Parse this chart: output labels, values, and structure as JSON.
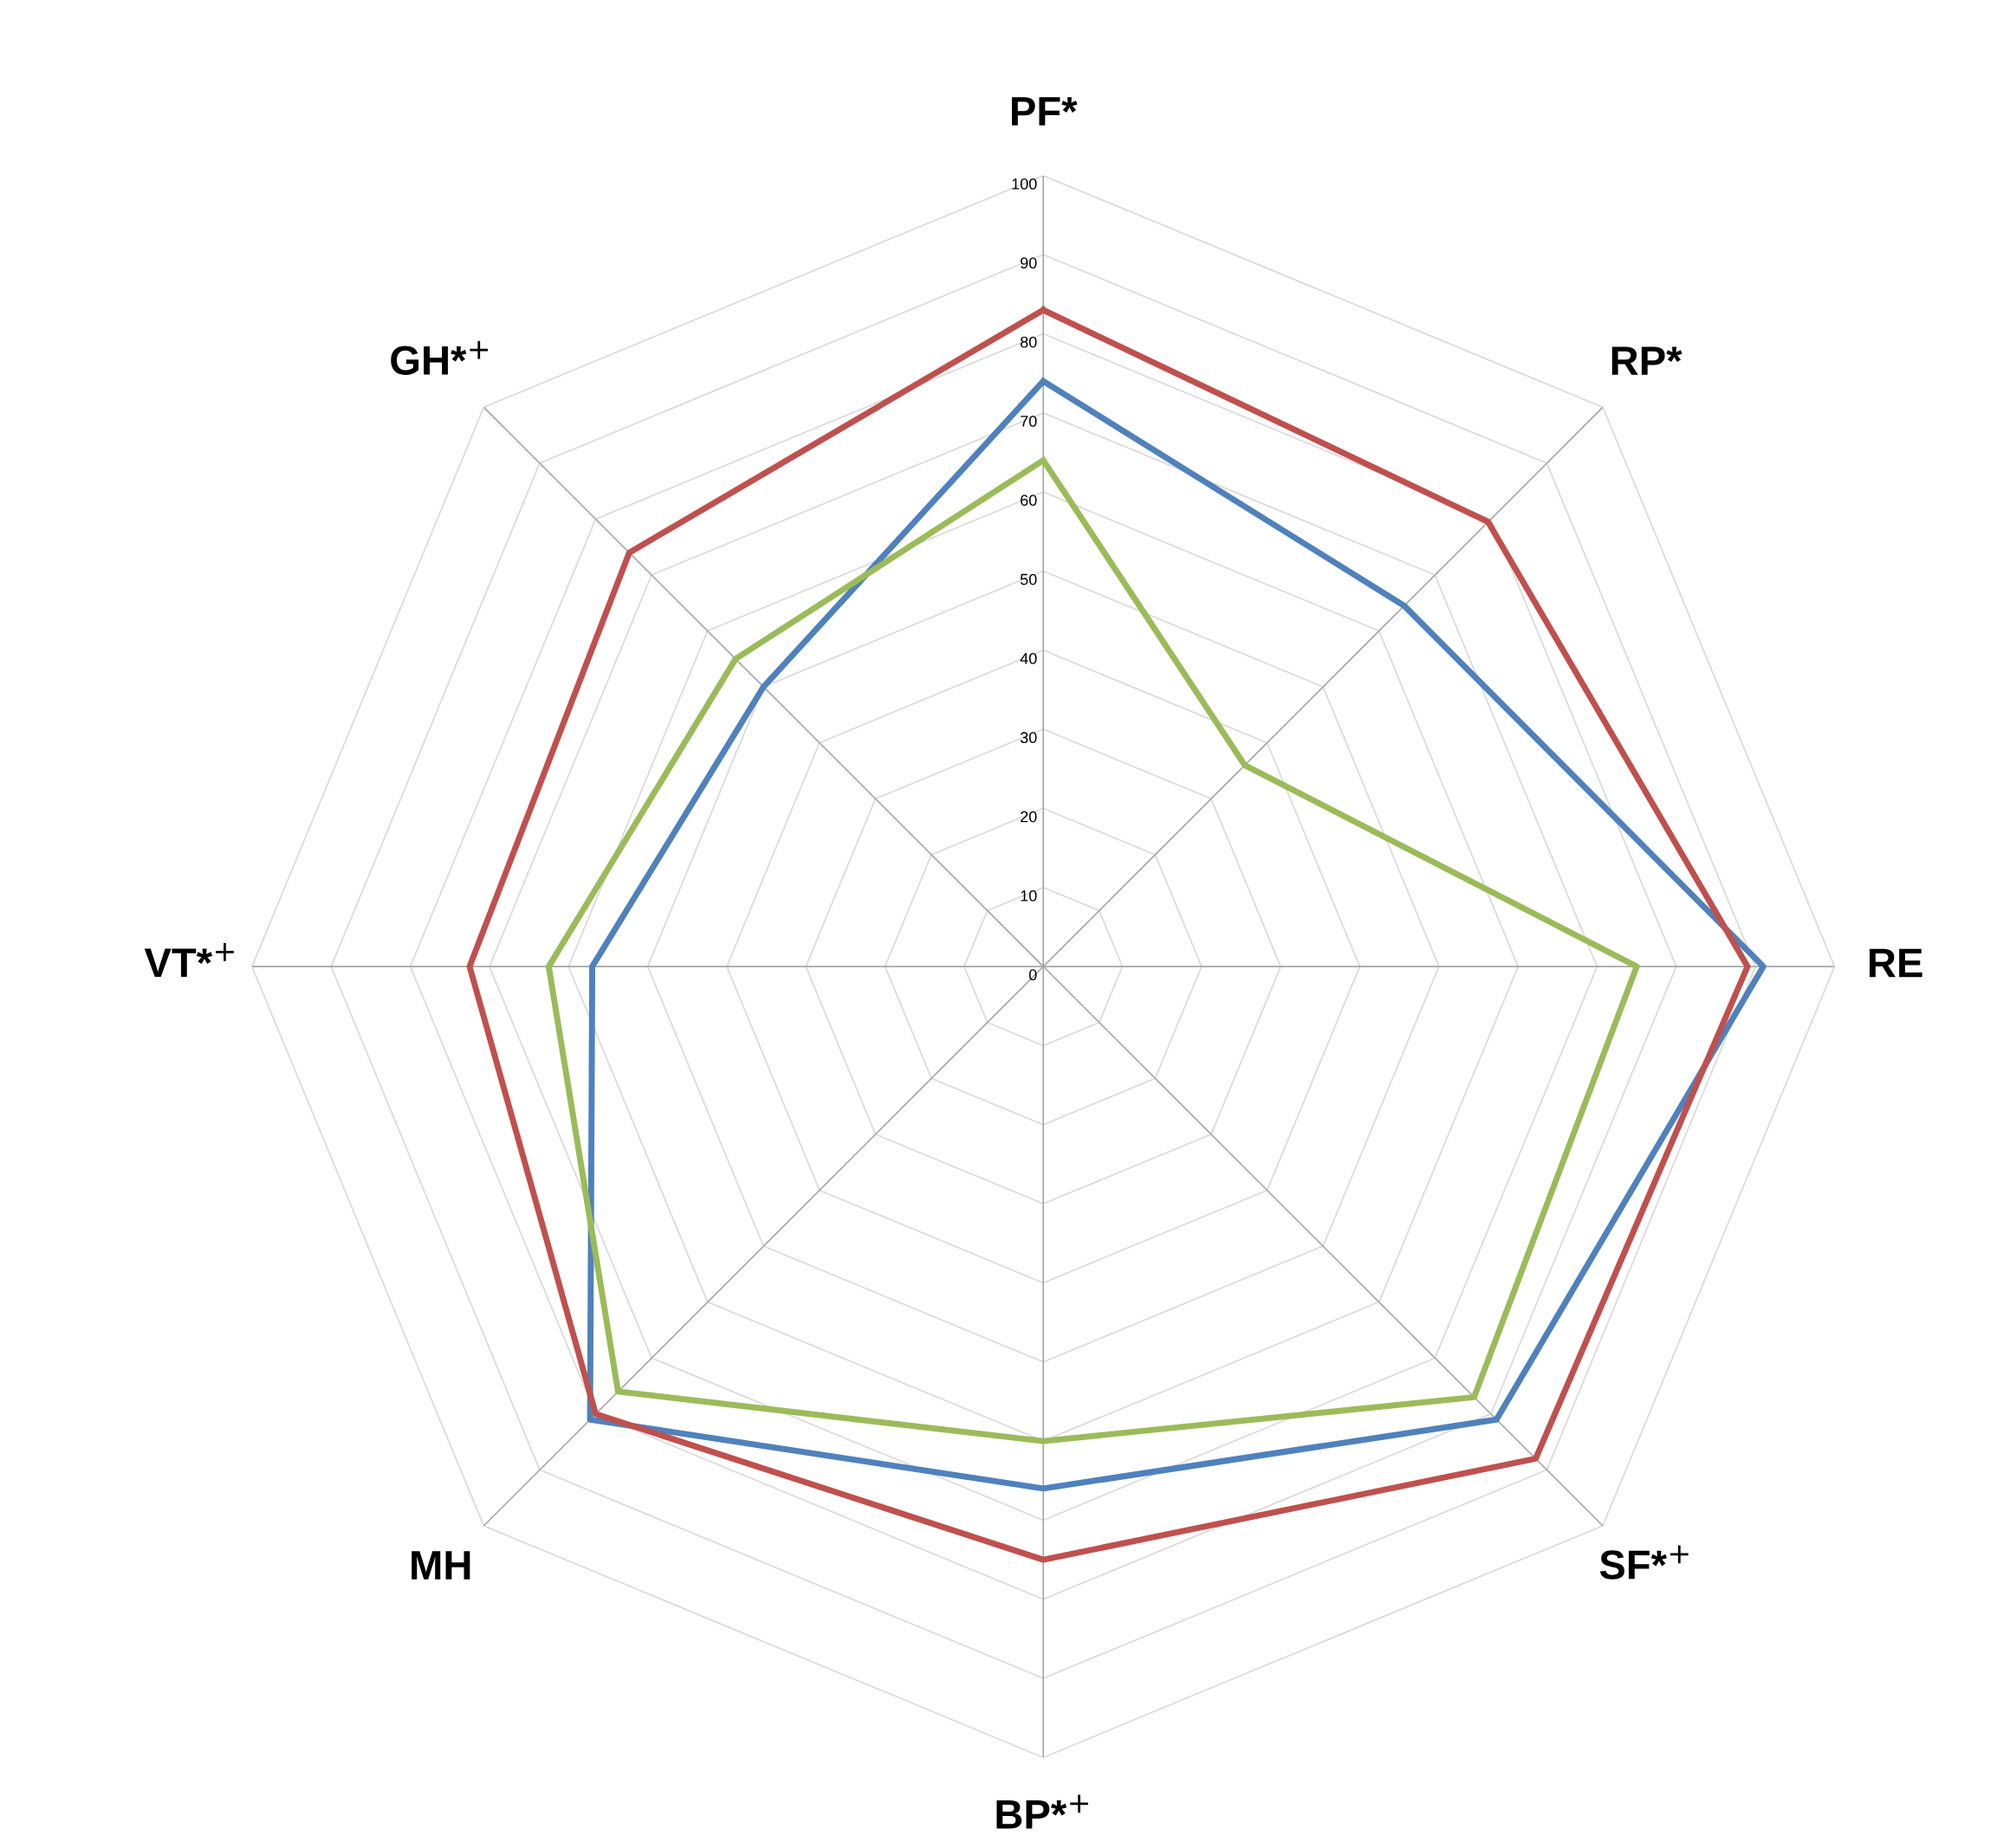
{
  "chart_data": {
    "type": "radar",
    "categories": [
      "PF*",
      "RP*",
      "RE",
      "SF*$^{+}$",
      "BP*$^{+}$",
      "MH",
      "VT*$^{+}$",
      "GH*$^{+}$"
    ],
    "series": [
      {
        "color": "#4f81bd",
        "values": [
          74,
          64.5,
          91,
          81,
          66,
          81,
          57,
          50
        ]
      },
      {
        "color": "#c0504d",
        "values": [
          83,
          79.5,
          89,
          88,
          75,
          80,
          72.5,
          74
        ]
      },
      {
        "color": "#9bbb59",
        "values": [
          64,
          36,
          75,
          77,
          60,
          76,
          62.5,
          55
        ]
      }
    ],
    "ylim": [
      0,
      100
    ],
    "yticks": [
      0,
      10,
      20,
      30,
      40,
      50,
      60,
      70,
      80,
      90,
      100
    ],
    "grid": true,
    "marker": "none",
    "line_style": "solid"
  }
}
